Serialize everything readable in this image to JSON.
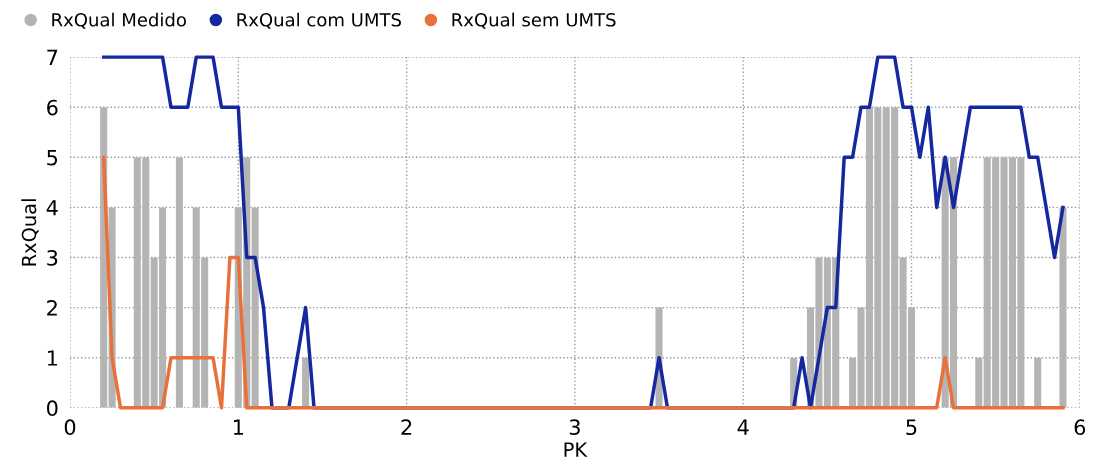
{
  "chart_data": {
    "type": "bar",
    "xlabel": "PK",
    "ylabel": "RxQual",
    "xlim": [
      0,
      6
    ],
    "xticks": [
      0,
      1,
      2,
      3,
      4,
      5,
      6
    ],
    "ylim": [
      0,
      7
    ],
    "yticks": [
      0,
      1,
      2,
      3,
      4,
      5,
      6,
      7
    ],
    "grid": true,
    "legend": "top left",
    "series": [
      {
        "name": "RxQual Medido",
        "color": "#b4b4b4",
        "x": [
          0.2,
          0.25,
          0.4,
          0.45,
          0.5,
          0.55,
          0.65,
          0.75,
          0.8,
          1.0,
          1.05,
          1.1,
          1.4,
          3.5,
          4.3,
          4.4,
          4.45,
          4.5,
          4.55,
          4.65,
          4.7,
          4.75,
          4.8,
          4.85,
          4.9,
          4.95,
          5.0,
          5.2,
          5.25,
          5.4,
          5.45,
          5.5,
          5.55,
          5.6,
          5.65,
          5.75,
          5.9
        ],
        "values": [
          6,
          4,
          5,
          5,
          3,
          4,
          5,
          4,
          3,
          4,
          5,
          4,
          1,
          2,
          1,
          2,
          3,
          3,
          3,
          1,
          2,
          6,
          6,
          6,
          6,
          3,
          2,
          5,
          5,
          1,
          5,
          5,
          5,
          5,
          5,
          1,
          4
        ]
      },
      {
        "name": "RxQual com UMTS",
        "type": "line",
        "color": "#1428a0",
        "x": [
          0.2,
          0.55,
          0.6,
          0.7,
          0.75,
          0.85,
          0.9,
          1.0,
          1.05,
          1.1,
          1.15,
          1.2,
          1.3,
          1.4,
          1.45,
          3.45,
          3.5,
          3.55,
          4.3,
          4.35,
          4.4,
          4.5,
          4.55,
          4.6,
          4.65,
          4.7,
          4.75,
          4.8,
          4.9,
          4.95,
          5.0,
          5.05,
          5.1,
          5.15,
          5.2,
          5.25,
          5.35,
          5.65,
          5.7,
          5.75,
          5.85,
          5.9
        ],
        "values": [
          7,
          7,
          6,
          6,
          7,
          7,
          6,
          6,
          3,
          3,
          2,
          0,
          0,
          2,
          0,
          0,
          1,
          0,
          0,
          1,
          0,
          2,
          2,
          5,
          5,
          6,
          6,
          7,
          7,
          6,
          6,
          5,
          6,
          4,
          5,
          4,
          6,
          6,
          5,
          5,
          3,
          4
        ]
      },
      {
        "name": "RxQual sem UMTS",
        "type": "line",
        "color": "#e8703a",
        "x": [
          0.2,
          0.25,
          0.3,
          0.55,
          0.6,
          0.85,
          0.9,
          0.95,
          1.0,
          1.05,
          5.15,
          5.2,
          5.25,
          5.9
        ],
        "values": [
          5,
          1,
          0,
          0,
          1,
          1,
          0,
          3,
          3,
          0,
          0,
          1,
          0,
          0
        ]
      }
    ]
  }
}
